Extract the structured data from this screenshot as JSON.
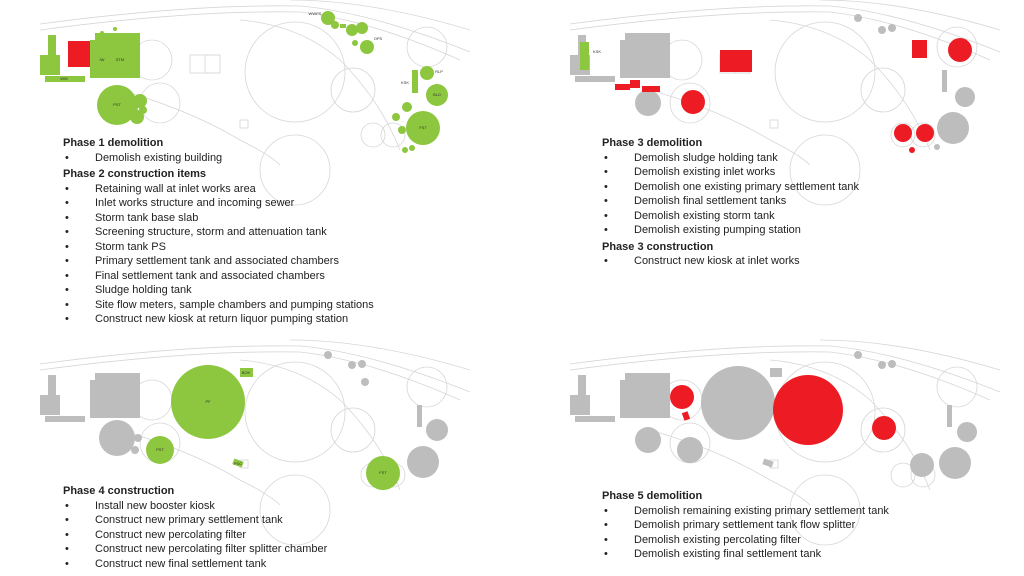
{
  "colors": {
    "construction": "#8dc63f",
    "demolition": "#ed1c24",
    "existing": "#bdbdbd",
    "outline": "#d6d6d6"
  },
  "phase1": {
    "map_labels": {
      "iw": "IW",
      "stm": "STM",
      "ww": "WW",
      "pst": "PST",
      "wwps": "WWPS",
      "ops": "OPS",
      "ksk": "KSK",
      "rlp": "RLP",
      "bld": "BLD",
      "fst": "FST"
    },
    "demolition_title": "Phase 1 demolition",
    "demolition_items": [
      "Demolish existing building"
    ],
    "construction_title": "Phase 2 construction items",
    "construction_items": [
      "Retaining wall at inlet works area",
      "Inlet works structure and incoming sewer",
      "Storm tank base slab",
      "Screening structure, storm and attenuation tank",
      "Storm tank PS",
      "Primary settlement tank and associated chambers",
      "Final settlement tank and associated chambers",
      "Sludge holding tank",
      "Site flow meters, sample chambers and pumping stations",
      "Construct new kiosk at return liquor pumping station"
    ]
  },
  "phase3": {
    "map_labels": {
      "ksk": "KSK"
    },
    "demolition_title": "Phase 3 demolition",
    "demolition_items": [
      "Demolish sludge holding tank",
      "Demolish existing inlet works",
      "Demolish one existing primary settlement tank",
      "Demolish final settlement tanks",
      "Demolish existing storm tank",
      "Demolish existing pumping station"
    ],
    "construction_title": "Phase 3 construction",
    "construction_items": [
      "Construct new kiosk at inlet works"
    ]
  },
  "phase4": {
    "map_labels": {
      "bok": "BOK",
      "pf": "PF",
      "pst": "PST",
      "psc": "PSC",
      "fst": "FST"
    },
    "construction_title": "Phase 4 construction",
    "construction_items": [
      "Install new booster kiosk",
      "Construct new primary settlement tank",
      "Construct new percolating filter",
      "Construct new percolating filter splitter chamber",
      "Construct new final settlement tank"
    ]
  },
  "phase5": {
    "demolition_title": "Phase 5 demolition",
    "demolition_items": [
      "Demolish remaining existing primary settlement tank",
      "Demolish primary settlement tank flow splitter",
      "Demolish existing percolating filter",
      "Demolish existing final settlement tank"
    ]
  }
}
